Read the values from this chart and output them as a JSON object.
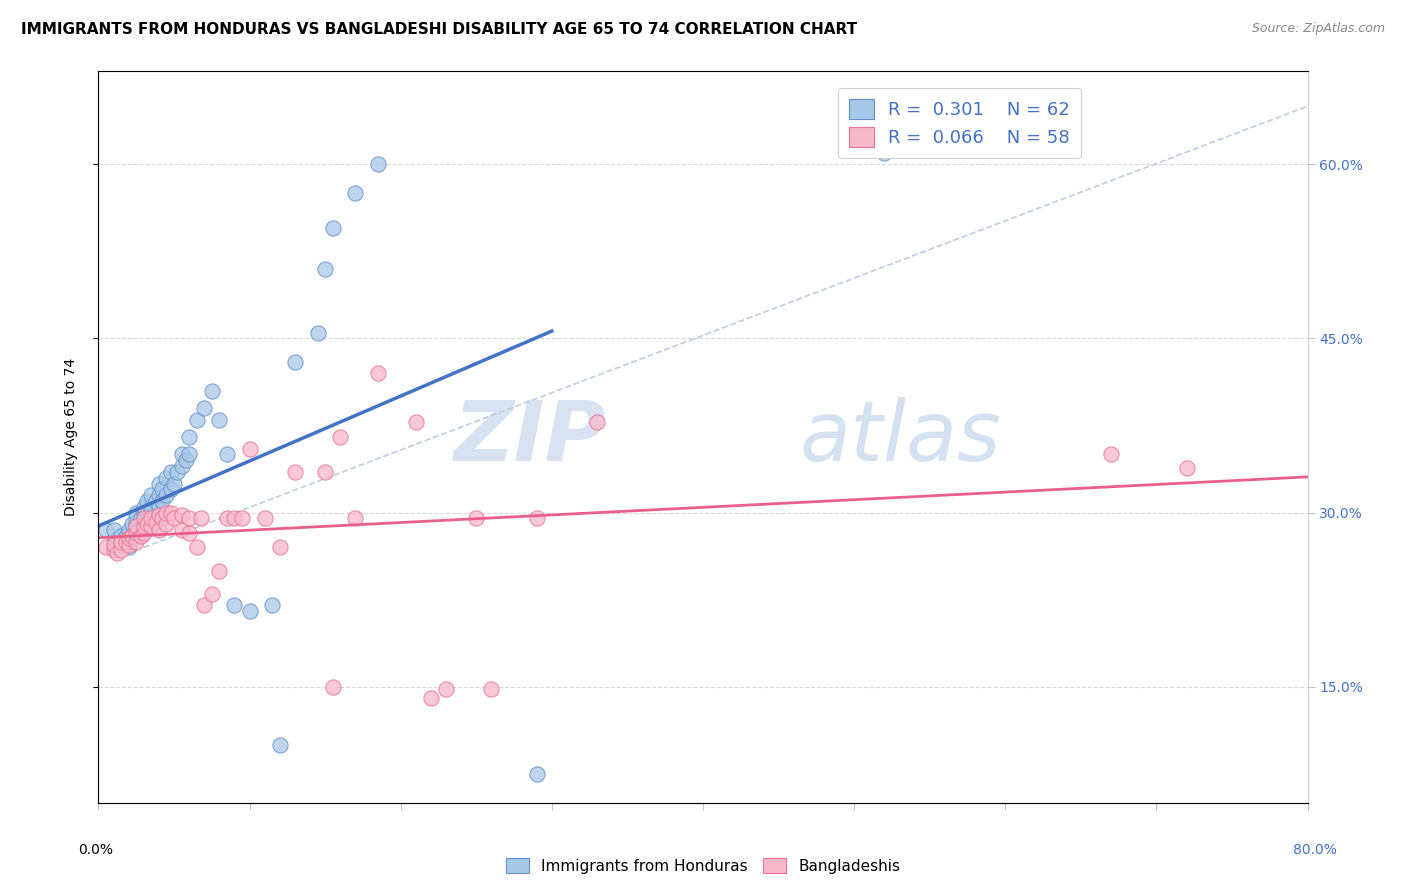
{
  "title": "IMMIGRANTS FROM HONDURAS VS BANGLADESHI DISABILITY AGE 65 TO 74 CORRELATION CHART",
  "source": "Source: ZipAtlas.com",
  "ylabel": "Disability Age 65 to 74",
  "yticks": [
    0.15,
    0.3,
    0.45,
    0.6
  ],
  "ytick_labels": [
    "15.0%",
    "30.0%",
    "45.0%",
    "60.0%"
  ],
  "xlim": [
    0.0,
    0.8
  ],
  "ylim": [
    0.05,
    0.68
  ],
  "legend_blue_r": "0.301",
  "legend_blue_n": "62",
  "legend_pink_r": "0.066",
  "legend_pink_n": "58",
  "legend_label_blue": "Immigrants from Honduras",
  "legend_label_pink": "Bangladeshis",
  "blue_scatter_color": "#a8c8e8",
  "pink_scatter_color": "#f8b8cc",
  "blue_edge_color": "#6090c8",
  "pink_edge_color": "#e87090",
  "blue_trend_color": "#4472c4",
  "pink_trend_color": "#e8608a",
  "gray_dash_color": "#b8c8e0",
  "watermark": "ZIPAtlas",
  "background_color": "#ffffff",
  "blue_x": [
    0.005,
    0.01,
    0.01,
    0.012,
    0.015,
    0.015,
    0.018,
    0.02,
    0.02,
    0.02,
    0.022,
    0.022,
    0.025,
    0.025,
    0.025,
    0.025,
    0.025,
    0.028,
    0.028,
    0.03,
    0.03,
    0.03,
    0.03,
    0.032,
    0.032,
    0.035,
    0.035,
    0.035,
    0.038,
    0.04,
    0.04,
    0.04,
    0.042,
    0.042,
    0.045,
    0.045,
    0.048,
    0.048,
    0.05,
    0.052,
    0.055,
    0.055,
    0.058,
    0.06,
    0.06,
    0.065,
    0.07,
    0.075,
    0.08,
    0.085,
    0.09,
    0.1,
    0.115,
    0.12,
    0.13,
    0.145,
    0.15,
    0.155,
    0.17,
    0.185,
    0.29,
    0.52
  ],
  "blue_y": [
    0.285,
    0.275,
    0.285,
    0.27,
    0.275,
    0.28,
    0.28,
    0.27,
    0.275,
    0.285,
    0.28,
    0.29,
    0.28,
    0.285,
    0.29,
    0.295,
    0.3,
    0.285,
    0.295,
    0.285,
    0.29,
    0.3,
    0.305,
    0.295,
    0.31,
    0.295,
    0.305,
    0.315,
    0.31,
    0.305,
    0.315,
    0.325,
    0.31,
    0.32,
    0.315,
    0.33,
    0.32,
    0.335,
    0.325,
    0.335,
    0.34,
    0.35,
    0.345,
    0.35,
    0.365,
    0.38,
    0.39,
    0.405,
    0.38,
    0.35,
    0.22,
    0.215,
    0.22,
    0.1,
    0.43,
    0.455,
    0.51,
    0.545,
    0.575,
    0.6,
    0.075,
    0.61
  ],
  "pink_x": [
    0.005,
    0.01,
    0.01,
    0.012,
    0.015,
    0.015,
    0.018,
    0.02,
    0.02,
    0.022,
    0.025,
    0.025,
    0.025,
    0.028,
    0.03,
    0.03,
    0.03,
    0.032,
    0.035,
    0.035,
    0.038,
    0.04,
    0.04,
    0.042,
    0.045,
    0.045,
    0.048,
    0.05,
    0.055,
    0.055,
    0.06,
    0.06,
    0.065,
    0.068,
    0.07,
    0.075,
    0.08,
    0.085,
    0.09,
    0.095,
    0.1,
    0.11,
    0.12,
    0.13,
    0.15,
    0.155,
    0.16,
    0.17,
    0.185,
    0.21,
    0.22,
    0.23,
    0.25,
    0.26,
    0.29,
    0.33,
    0.67,
    0.72
  ],
  "pink_y": [
    0.27,
    0.268,
    0.272,
    0.265,
    0.268,
    0.275,
    0.275,
    0.272,
    0.278,
    0.28,
    0.275,
    0.282,
    0.288,
    0.28,
    0.282,
    0.288,
    0.295,
    0.29,
    0.288,
    0.295,
    0.292,
    0.285,
    0.298,
    0.295,
    0.29,
    0.3,
    0.3,
    0.295,
    0.285,
    0.298,
    0.282,
    0.295,
    0.27,
    0.295,
    0.22,
    0.23,
    0.25,
    0.295,
    0.295,
    0.295,
    0.355,
    0.295,
    0.27,
    0.335,
    0.335,
    0.15,
    0.365,
    0.295,
    0.42,
    0.378,
    0.14,
    0.148,
    0.295,
    0.148,
    0.295,
    0.378,
    0.35,
    0.338
  ],
  "title_fontsize": 11,
  "source_fontsize": 9,
  "axis_label_fontsize": 10,
  "tick_fontsize": 10,
  "legend_fontsize": 13
}
